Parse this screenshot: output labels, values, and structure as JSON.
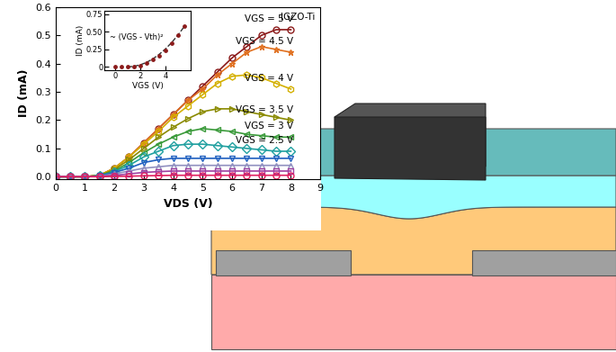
{
  "chart_data": [
    {
      "type": "line",
      "annotations": [
        "IGZO-Ti"
      ],
      "x_label": "VDS (V)",
      "y_label": "ID (mA)",
      "xlim": [
        0,
        9
      ],
      "ylim": [
        -0.01,
        0.6
      ],
      "xticks": [
        0,
        1,
        2,
        3,
        4,
        5,
        6,
        7,
        8,
        9
      ],
      "yticks": [
        0.0,
        0.1,
        0.2,
        0.3,
        0.4,
        0.5,
        0.6
      ],
      "x": [
        0,
        0.5,
        1,
        1.5,
        2,
        2.5,
        3,
        3.5,
        4,
        4.5,
        5,
        5.5,
        6,
        6.5,
        7,
        7.5,
        8
      ],
      "series": [
        {
          "name": "VGS = 5 V",
          "color": "#8b1a1a",
          "marker": "circle",
          "values": [
            0,
            0,
            0,
            0.005,
            0.03,
            0.07,
            0.12,
            0.17,
            0.22,
            0.27,
            0.32,
            0.37,
            0.42,
            0.46,
            0.5,
            0.52,
            0.52
          ]
        },
        {
          "name": "VGS = 4.5 V",
          "color": "#e07020",
          "marker": "star",
          "values": [
            0,
            0,
            0,
            0.005,
            0.03,
            0.07,
            0.12,
            0.17,
            0.22,
            0.27,
            0.31,
            0.36,
            0.4,
            0.44,
            0.46,
            0.45,
            0.44
          ]
        },
        {
          "name": "VGS = 4 V",
          "color": "#d4b000",
          "marker": "hexagon",
          "values": [
            0,
            0,
            0,
            0.005,
            0.03,
            0.07,
            0.115,
            0.16,
            0.21,
            0.25,
            0.29,
            0.33,
            0.355,
            0.36,
            0.35,
            0.33,
            0.31
          ]
        },
        {
          "name": "VGS = 3.5 V",
          "color": "#8a8a00",
          "marker": "triangle_right",
          "values": [
            0,
            0,
            0,
            0.004,
            0.025,
            0.06,
            0.1,
            0.14,
            0.175,
            0.205,
            0.23,
            0.24,
            0.24,
            0.23,
            0.22,
            0.21,
            0.2
          ]
        },
        {
          "name": "VGS = 3 V",
          "color": "#3a9a3a",
          "marker": "triangle_left",
          "values": [
            0,
            0,
            0,
            0.004,
            0.02,
            0.05,
            0.085,
            0.115,
            0.14,
            0.16,
            0.17,
            0.165,
            0.16,
            0.15,
            0.145,
            0.14,
            0.14
          ]
        },
        {
          "name": "VGS = 2.5 V",
          "color": "#20a0a0",
          "marker": "diamond",
          "values": [
            0,
            0,
            0,
            0.003,
            0.018,
            0.04,
            0.07,
            0.09,
            0.11,
            0.115,
            0.115,
            0.11,
            0.105,
            0.1,
            0.095,
            0.09,
            0.09
          ]
        },
        {
          "color": "#2060c0",
          "marker": "triangle_down",
          "values": [
            0,
            0,
            0,
            0.003,
            0.015,
            0.03,
            0.05,
            0.06,
            0.065,
            0.065,
            0.065,
            0.065,
            0.065,
            0.065,
            0.065,
            0.065,
            0.065
          ]
        },
        {
          "color": "#9090c0",
          "marker": "triangle_up",
          "values": [
            0,
            0,
            0,
            0.002,
            0.01,
            0.02,
            0.03,
            0.035,
            0.04,
            0.04,
            0.04,
            0.04,
            0.04,
            0.04,
            0.04,
            0.04,
            0.04
          ]
        },
        {
          "color": "#a040a0",
          "marker": "square",
          "values": [
            0,
            0,
            0,
            0.001,
            0.005,
            0.01,
            0.015,
            0.018,
            0.02,
            0.02,
            0.02,
            0.02,
            0.02,
            0.02,
            0.02,
            0.02,
            0.02
          ]
        },
        {
          "color": "#e02060",
          "marker": "circle",
          "values": [
            0,
            0,
            0,
            0,
            0.001,
            0.002,
            0.003,
            0.004,
            0.005,
            0.005,
            0.005,
            0.005,
            0.005,
            0.005,
            0.005,
            0.005,
            0.005
          ]
        }
      ]
    },
    {
      "type": "scatter",
      "annotations": [
        "~ (VGS - Vth)²"
      ],
      "x_label": "VGS (V)",
      "y_label": "ID (mA)",
      "xlim": [
        -0.8,
        6
      ],
      "ylim": [
        -0.05,
        0.8
      ],
      "xticks": [
        0,
        2,
        4
      ],
      "yticks": [
        0,
        0.25,
        {
          "value": 0.5,
          "label": "0.50"
        },
        0.75
      ],
      "series": [
        {
          "type": "scatter",
          "color": "#8b1a1a",
          "marker": "circle",
          "x": [
            0,
            0.5,
            1,
            1.5,
            2,
            2.5,
            3,
            3.5,
            4,
            4.5,
            5,
            5.5
          ],
          "values": [
            0,
            0,
            0,
            0.005,
            0.02,
            0.05,
            0.1,
            0.16,
            0.24,
            0.34,
            0.45,
            0.58
          ]
        },
        {
          "type": "line",
          "color": "#333333",
          "line_style": "dashed",
          "x": [
            1,
            1.5,
            2,
            2.5,
            3,
            3.5,
            4,
            4.5,
            5,
            5.5
          ],
          "values": [
            0,
            0.007,
            0.029,
            0.064,
            0.114,
            0.179,
            0.257,
            0.35,
            0.458,
            0.58
          ]
        }
      ]
    }
  ]
}
